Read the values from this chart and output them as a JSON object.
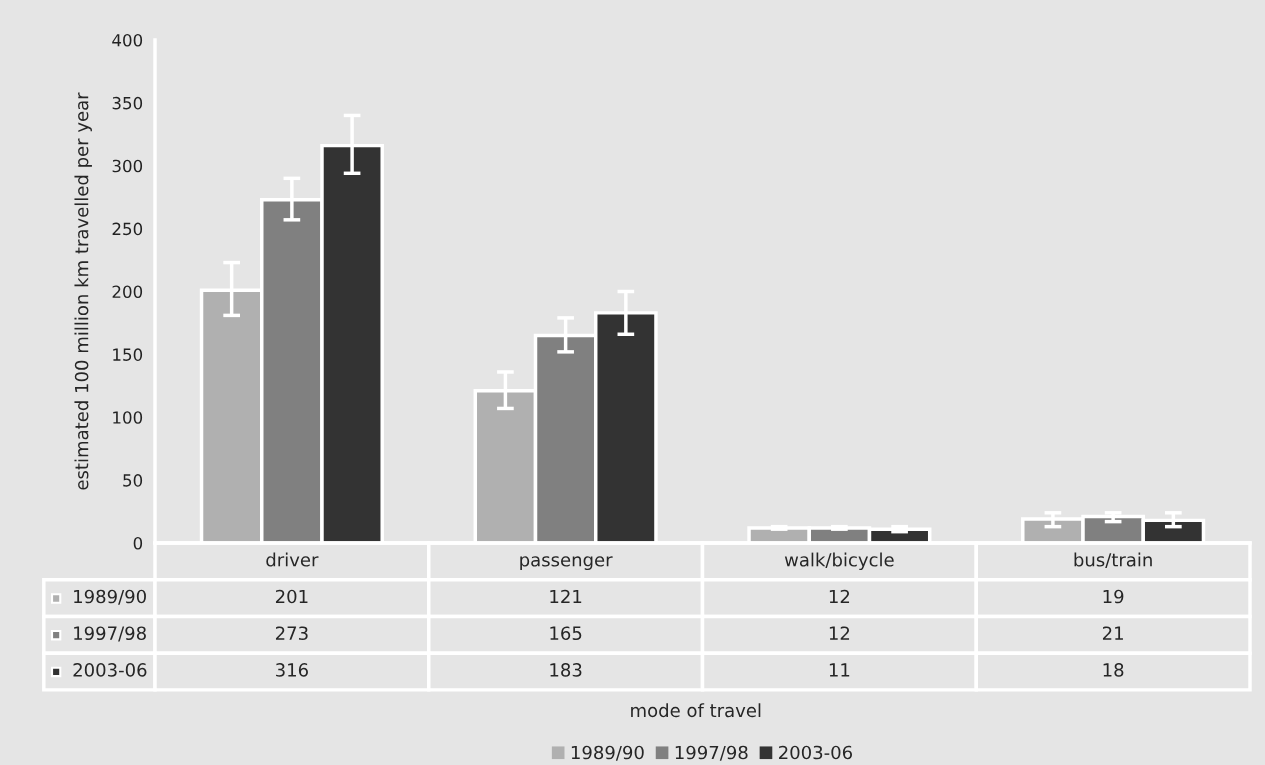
{
  "chart_data": {
    "type": "bar",
    "annotations": [
      "mode of travel"
    ],
    "ylabel": "estimated 100 million km travelled per year",
    "categories": [
      "driver",
      "passenger",
      "walk/bicycle",
      "bus/train"
    ],
    "series": [
      {
        "name": "1989/90",
        "color": "#b0b0b0",
        "values": [
          201,
          121,
          12,
          19
        ],
        "errors": [
          [
            181,
            223
          ],
          [
            107,
            136
          ],
          [
            11,
            13
          ],
          [
            13,
            24
          ]
        ]
      },
      {
        "name": "1997/98",
        "color": "#808080",
        "values": [
          273,
          165,
          12,
          21
        ],
        "errors": [
          [
            257,
            290
          ],
          [
            152,
            179
          ],
          [
            11,
            13
          ],
          [
            17,
            24
          ]
        ]
      },
      {
        "name": "2003-06",
        "color": "#333333",
        "values": [
          316,
          183,
          11,
          18
        ],
        "errors": [
          [
            294,
            340
          ],
          [
            166,
            200
          ],
          [
            9,
            13
          ],
          [
            13,
            24
          ]
        ]
      }
    ],
    "ylim": [
      0,
      400
    ],
    "yticks": [
      0,
      50,
      100,
      150,
      200,
      250,
      300,
      350,
      400
    ],
    "data_labels": true,
    "legend": "bottom",
    "grid": false
  }
}
